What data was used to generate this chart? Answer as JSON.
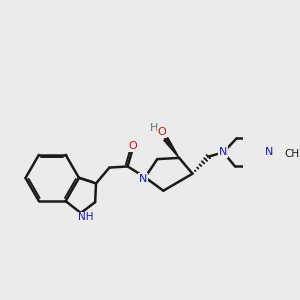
{
  "bg_color": "#ebebeb",
  "bond_color": "#1a1a1a",
  "n_color": "#1414cc",
  "o_color": "#cc1414",
  "h_color": "#4a7a7a",
  "figsize": [
    3.0,
    3.0
  ],
  "dpi": 100,
  "xlim": [
    0,
    10
  ],
  "ylim": [
    0,
    10
  ]
}
